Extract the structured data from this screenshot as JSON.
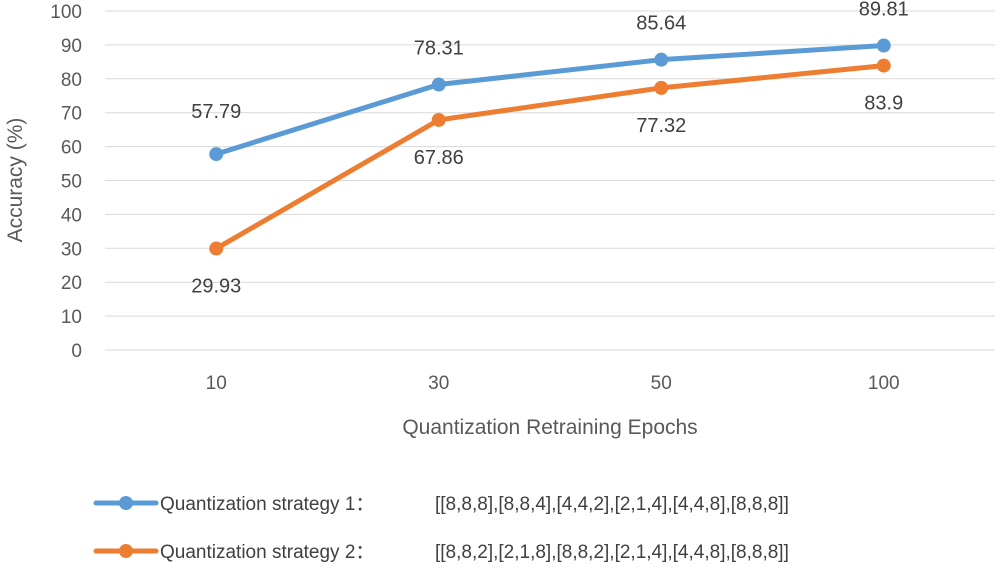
{
  "chart_data": {
    "type": "line",
    "xlabel": "Quantization Retraining Epochs",
    "ylabel": "Accuracy  (%)",
    "ylim": [
      0,
      100
    ],
    "y_ticks": [
      0,
      10,
      20,
      30,
      40,
      50,
      60,
      70,
      80,
      90,
      100
    ],
    "categories": [
      "10",
      "30",
      "50",
      "100"
    ],
    "grid": true,
    "legend_position": "bottom",
    "series": [
      {
        "name": "Quantization strategy 1",
        "config": "[[8,8,8],[8,8,4],[4,4,2],[2,1,4],[4,4,8],[8,8,8]]",
        "values": [
          57.79,
          78.31,
          85.64,
          89.81
        ],
        "labels": [
          "57.79",
          "78.31",
          "85.64",
          "89.81"
        ],
        "color": "#5B9BD5"
      },
      {
        "name": "Quantization strategy 2",
        "config": "[[8,8,2],[2,1,8],[8,8,2],[2,1,4],[4,4,8],[8,8,8]]",
        "values": [
          29.93,
          67.86,
          77.32,
          83.9
        ],
        "labels": [
          "29.93",
          "67.86",
          "77.32",
          "83.9"
        ],
        "color": "#ED7D31"
      }
    ]
  }
}
